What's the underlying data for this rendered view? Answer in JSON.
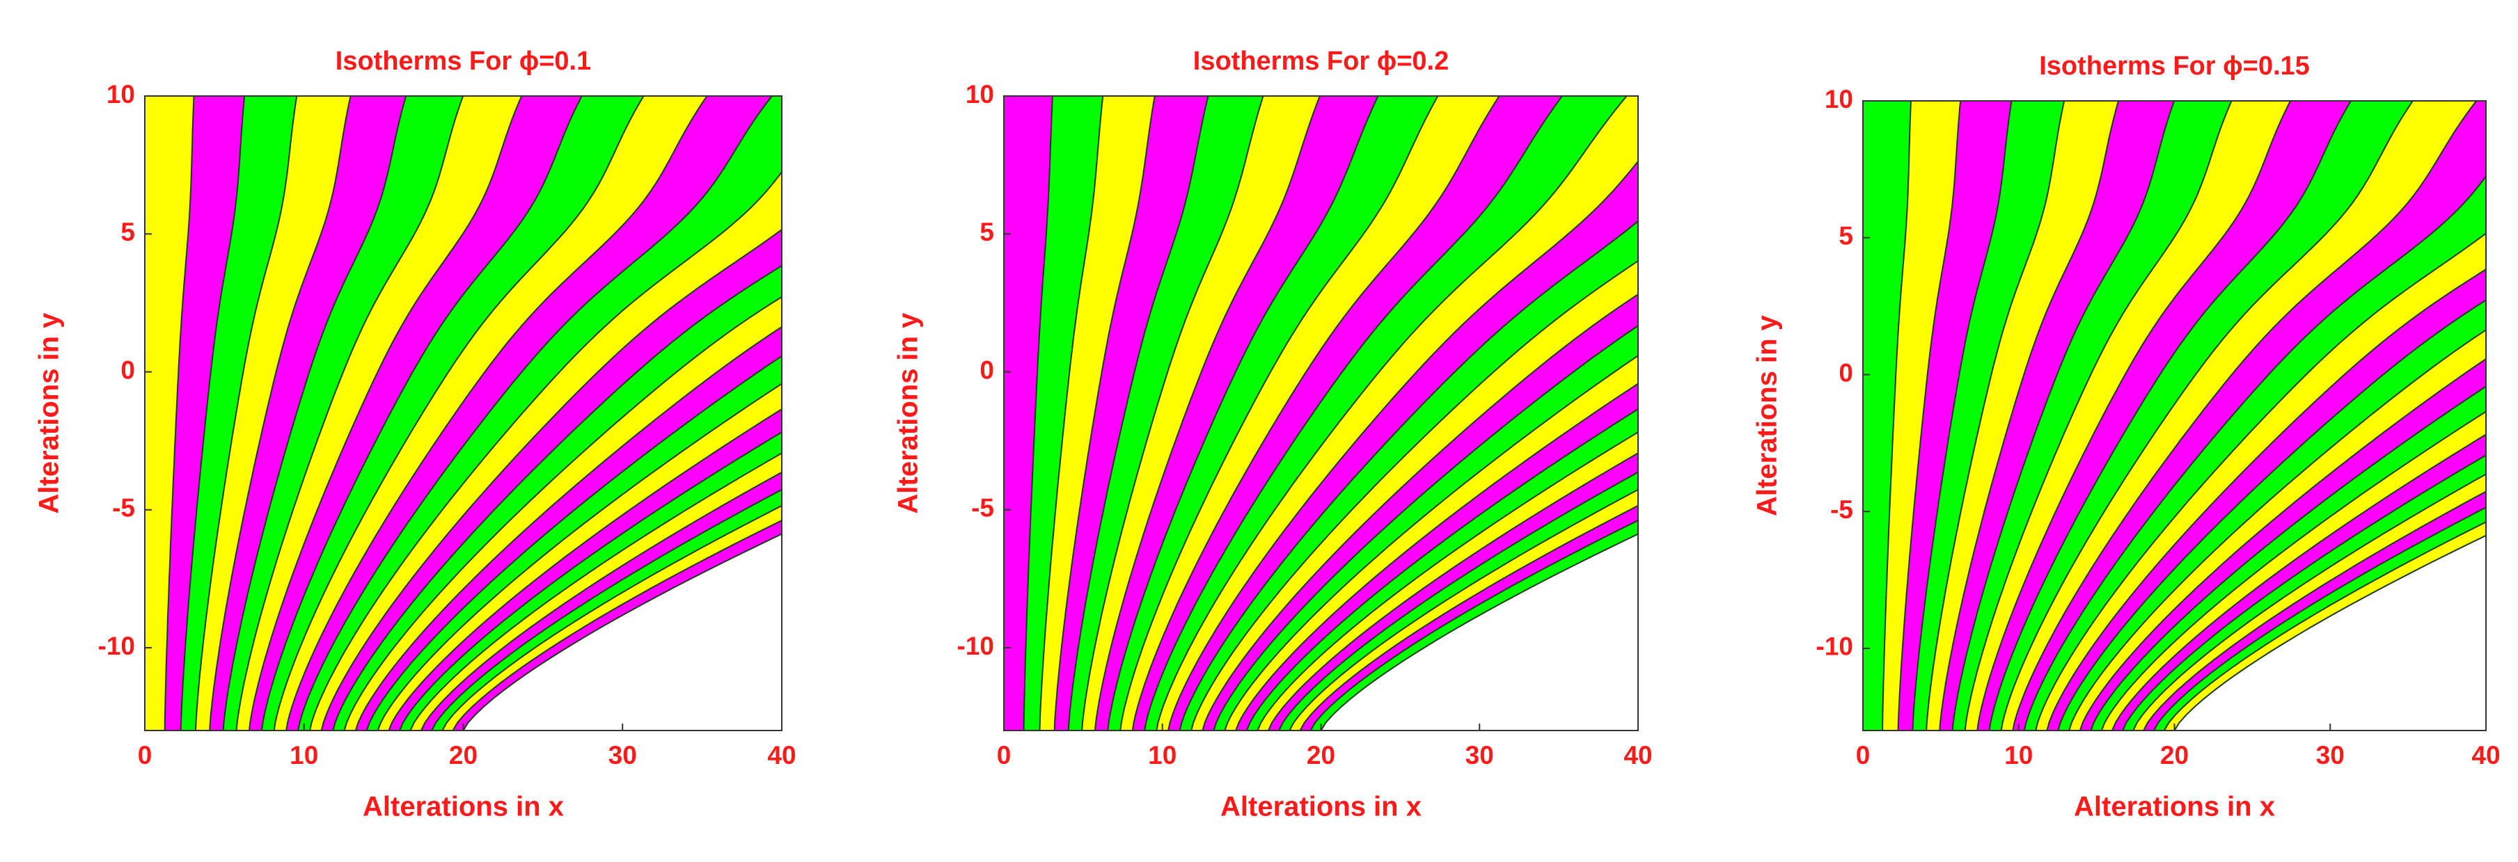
{
  "chart_data": [
    {
      "type": "contour",
      "title": "Isotherms For ϕ=0.1",
      "x_label": "Alterations in x",
      "y_label": "Alterations in y",
      "xlim": [
        0,
        40
      ],
      "ylim": [
        -13,
        10
      ],
      "xticks": [
        0,
        10,
        20,
        30,
        40
      ],
      "yticks": [
        -10,
        -5,
        0,
        5,
        10
      ],
      "colors": [
        "#ffff00",
        "#ff00ff",
        "#00ff00"
      ]
    },
    {
      "type": "contour",
      "title": "Isotherms For ϕ=0.2",
      "x_label": "Alterations in x",
      "y_label": "Alterations in y",
      "xlim": [
        0,
        40
      ],
      "ylim": [
        -13,
        10
      ],
      "xticks": [
        0,
        10,
        20,
        30,
        40
      ],
      "yticks": [
        -10,
        -5,
        0,
        5,
        10
      ],
      "colors": [
        "#ff00ff",
        "#00ff00",
        "#ffff00"
      ]
    },
    {
      "type": "contour",
      "title": "Isotherms For ϕ=0.15",
      "x_label": "Alterations in x",
      "y_label": "Alterations in y",
      "xlim": [
        0,
        40
      ],
      "ylim": [
        -13,
        10
      ],
      "xticks": [
        0,
        10,
        20,
        30,
        40
      ],
      "yticks": [
        -10,
        -5,
        0,
        5,
        10
      ],
      "colors": [
        "#00ff00",
        "#ffff00",
        "#ff00ff"
      ]
    }
  ]
}
